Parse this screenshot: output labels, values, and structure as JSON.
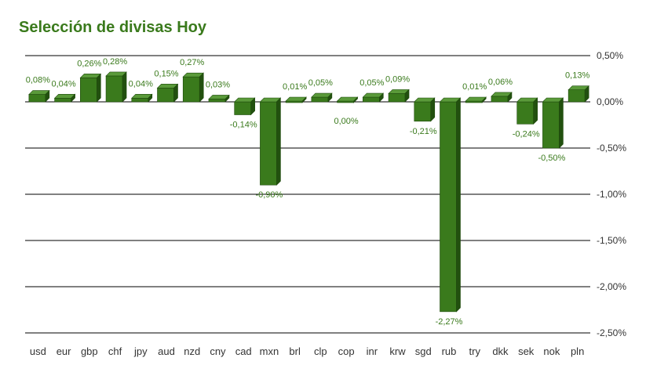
{
  "chart_data": {
    "type": "bar",
    "title": "Selección de divisas Hoy",
    "categories": [
      "usd",
      "eur",
      "gbp",
      "chf",
      "jpy",
      "aud",
      "nzd",
      "cny",
      "cad",
      "mxn",
      "brl",
      "clp",
      "cop",
      "inr",
      "krw",
      "sgd",
      "rub",
      "try",
      "dkk",
      "sek",
      "nok",
      "pln"
    ],
    "values": [
      0.08,
      0.04,
      0.26,
      0.28,
      0.04,
      0.15,
      0.27,
      0.03,
      -0.14,
      -0.9,
      0.01,
      0.05,
      0.0,
      0.05,
      0.09,
      -0.21,
      -2.27,
      0.01,
      0.06,
      -0.24,
      -0.5,
      0.13
    ],
    "data_labels": [
      "0,08%",
      "0,04%",
      "0,26%",
      "0,28%",
      "0,04%",
      "0,15%",
      "0,27%",
      "0,03%",
      "-0,14%",
      "-0,90%",
      "0,01%",
      "0,05%",
      "0,00%",
      "0,05%",
      "0,09%",
      "-0,21%",
      "-2,27%",
      "0,01%",
      "0,06%",
      "-0,24%",
      "-0,50%",
      "0,13%"
    ],
    "y_ticks": [
      0.5,
      0,
      -0.5,
      -1.0,
      -1.5,
      -2.0,
      -2.5
    ],
    "y_tick_labels": [
      "0,50%",
      "0,00%",
      "-0,50%",
      "-1,00%",
      "-1,50%",
      "-2,00%",
      "-2,50%"
    ],
    "ylim": [
      -2.5,
      0.5
    ],
    "y_axis_position": "right",
    "grid": true,
    "legend": "none",
    "colors": {
      "bar_front": "#3a7a1c",
      "bar_top": "#5a9a3a",
      "bar_side": "#22500f",
      "label_text": "#3a7a1c",
      "grid": "#000000"
    }
  }
}
